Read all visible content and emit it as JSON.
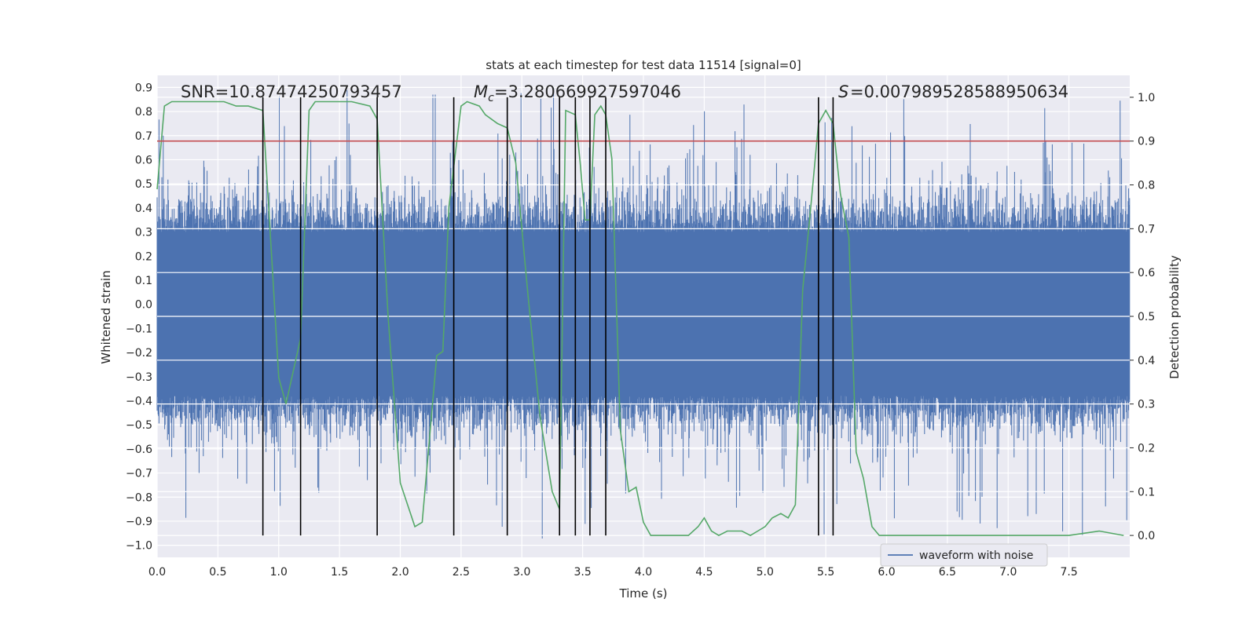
{
  "chart_data": {
    "type": "line",
    "title": "stats at each timestep for test data 11514 [signal=0]",
    "xlabel": "Time (s)",
    "ylabel_left": "Whitened strain",
    "ylabel_right": "Detection probability",
    "xlim": [
      0.0,
      8.0
    ],
    "ylim_left": [
      -1.05,
      0.95
    ],
    "ylim_right": [
      -0.05,
      1.05
    ],
    "x_ticks": [
      "0.0",
      "0.5",
      "1.0",
      "1.5",
      "2.0",
      "2.5",
      "3.0",
      "3.5",
      "4.0",
      "4.5",
      "5.0",
      "5.5",
      "6.0",
      "6.5",
      "7.0",
      "7.5"
    ],
    "y_ticks_left": [
      "0.9",
      "0.8",
      "0.7",
      "0.6",
      "0.5",
      "0.4",
      "0.3",
      "0.2",
      "0.1",
      "0.0",
      "−0.1",
      "−0.2",
      "−0.3",
      "−0.4",
      "−0.5",
      "−0.6",
      "−0.7",
      "−0.8",
      "−0.9",
      "−1.0"
    ],
    "y_ticks_right": [
      "0.0",
      "0.1",
      "0.2",
      "0.3",
      "0.4",
      "0.5",
      "0.6",
      "0.7",
      "0.8",
      "0.9",
      "1.0"
    ],
    "annotations": {
      "snr": "SNR=10.87474250793457",
      "mc": "=3.280669927597046",
      "s": "=0.007989528588950634"
    },
    "threshold": 0.9,
    "event_markers_s": [
      0.87,
      1.18,
      1.81,
      2.44,
      2.88,
      3.31,
      3.44,
      3.56,
      3.69,
      5.44,
      5.56
    ],
    "detection_probability": {
      "t": [
        0.0,
        0.06,
        0.12,
        0.3,
        0.55,
        0.65,
        0.75,
        0.87,
        0.95,
        1.0,
        1.06,
        1.18,
        1.25,
        1.3,
        1.4,
        1.5,
        1.6,
        1.75,
        1.81,
        1.9,
        2.0,
        2.06,
        2.12,
        2.18,
        2.3,
        2.35,
        2.4,
        2.5,
        2.55,
        2.65,
        2.7,
        2.8,
        2.88,
        2.95,
        3.05,
        3.15,
        3.25,
        3.31,
        3.36,
        3.44,
        3.48,
        3.52,
        3.56,
        3.6,
        3.65,
        3.69,
        3.74,
        3.81,
        3.88,
        3.94,
        4.0,
        4.06,
        4.12,
        4.25,
        4.37,
        4.45,
        4.5,
        4.56,
        4.62,
        4.69,
        4.75,
        4.81,
        4.88,
        4.94,
        5.0,
        5.06,
        5.13,
        5.19,
        5.25,
        5.31,
        5.37,
        5.44,
        5.5,
        5.56,
        5.62,
        5.69,
        5.75,
        5.81,
        5.88,
        5.94,
        6.0,
        6.25,
        6.5,
        6.75,
        7.0,
        7.25,
        7.5,
        7.75,
        7.95
      ],
      "p": [
        0.79,
        0.98,
        0.99,
        0.99,
        0.99,
        0.98,
        0.98,
        0.97,
        0.6,
        0.36,
        0.3,
        0.45,
        0.97,
        0.99,
        0.99,
        0.99,
        0.99,
        0.98,
        0.95,
        0.5,
        0.12,
        0.07,
        0.02,
        0.03,
        0.41,
        0.42,
        0.75,
        0.98,
        0.99,
        0.98,
        0.96,
        0.94,
        0.93,
        0.85,
        0.55,
        0.27,
        0.1,
        0.06,
        0.97,
        0.96,
        0.85,
        0.72,
        0.72,
        0.96,
        0.98,
        0.96,
        0.86,
        0.24,
        0.1,
        0.11,
        0.03,
        0.0,
        0.0,
        0.0,
        0.0,
        0.02,
        0.04,
        0.01,
        0.0,
        0.01,
        0.01,
        0.01,
        0.0,
        0.01,
        0.02,
        0.04,
        0.05,
        0.04,
        0.07,
        0.56,
        0.73,
        0.94,
        0.97,
        0.94,
        0.78,
        0.68,
        0.19,
        0.13,
        0.02,
        0.0,
        0.0,
        0.0,
        0.0,
        0.0,
        0.0,
        0.0,
        0.0,
        0.01,
        0.0
      ]
    },
    "legend": {
      "label": "waveform with noise",
      "placement": "lower-right"
    },
    "colors": {
      "background": "#eaeaf2",
      "grid": "#ffffff",
      "strain": "#4c72b0",
      "probability": "#55a868",
      "threshold": "#c44e52",
      "marker": "#000000",
      "text": "#262626"
    }
  }
}
